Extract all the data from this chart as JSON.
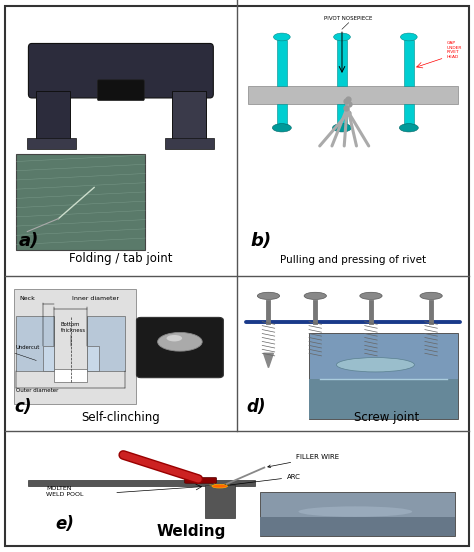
{
  "background_color": "#ffffff",
  "outer_border_color": "#333333",
  "divider_color": "#555555",
  "panel_a": {
    "label": "a)",
    "title": "Folding / tab joint",
    "tab_color": "#2c2c3c",
    "tab_color2": "#3a3a4a",
    "photo_color": "#5a7a6a"
  },
  "panel_b": {
    "label": "b)",
    "title": "Pulling and pressing of rivet",
    "bar_color": "#bbbbbb",
    "rivet_color": "#00ced1",
    "rivet_dark": "#009999",
    "label_pivot": "PIVOT NOSEPIECE",
    "label_gap": "GAP\nUNDER\nRIVET\nHEAD"
  },
  "panel_c": {
    "label": "c)",
    "title": "Self-clinching",
    "diag_bg": "#e0e0e0",
    "block_color": "#b8c8d8",
    "nut_color": "#1a1a1a",
    "dome_color": "#aaaaaa"
  },
  "panel_d": {
    "label": "d)",
    "title": "Screw joint",
    "bar_color": "#1a3a8a",
    "screw_color": "#888888",
    "photo_color": "#7a9aba"
  },
  "panel_e": {
    "label": "e)",
    "title": "Welding",
    "metal_color": "#555555",
    "torch_color": "#cc2222",
    "arc_color": "#ff6600",
    "wire_color": "#888888",
    "label_filler": "FILLER WIRE",
    "label_arc": "ARC",
    "label_pool": "MOLTEN\nWELD POOL",
    "photo_color": "#8899aa"
  }
}
